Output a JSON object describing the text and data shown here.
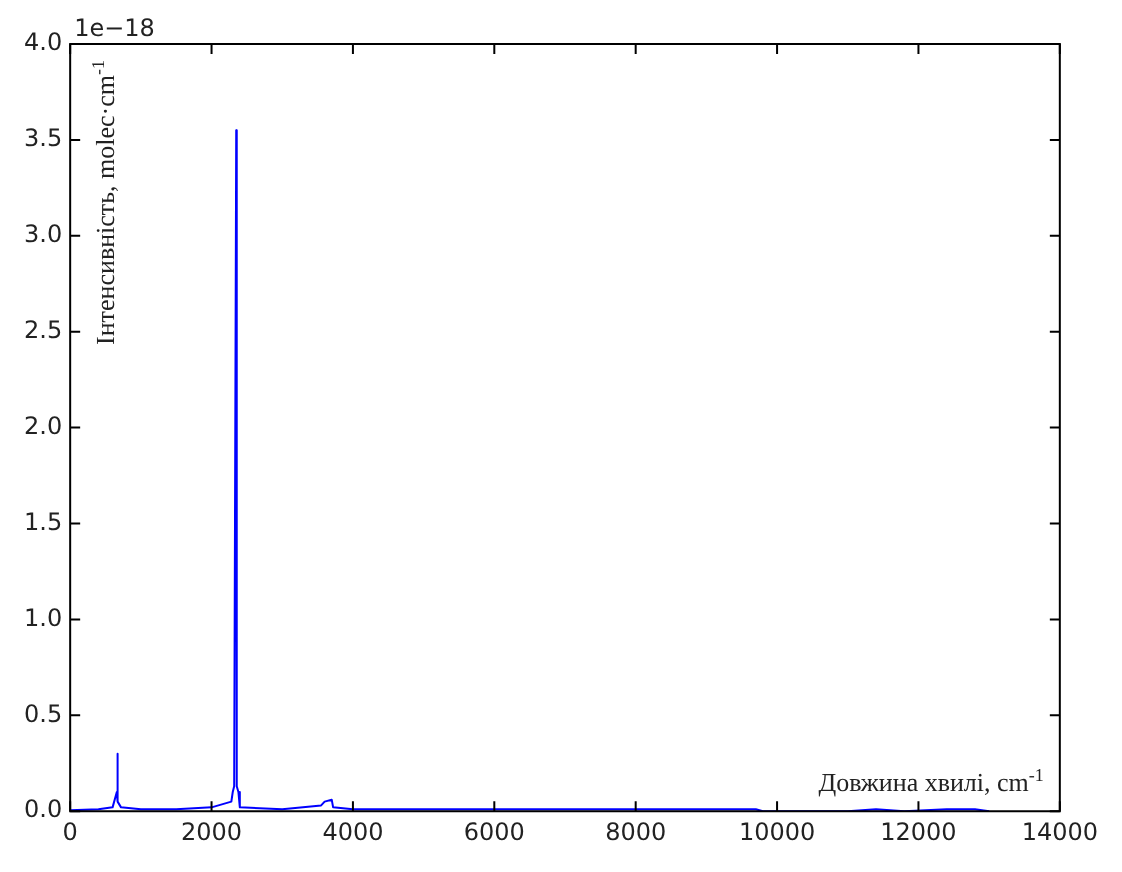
{
  "chart_data": {
    "type": "line",
    "xlabel": "Довжина хвилі, cm$^{-1}$",
    "ylabel": "Інтенсивність, molec·cm$^{-1}$",
    "annotations": [
      "1e−18"
    ],
    "x": [
      0,
      400,
      600,
      660,
      667,
      675,
      720,
      1000,
      1500,
      2000,
      2280,
      2300,
      2320,
      2345,
      2349,
      2353,
      2360,
      2380,
      2400,
      3000,
      3550,
      3600,
      3700,
      3720,
      4000,
      6000,
      8000,
      9700,
      9800,
      11000,
      11400,
      11800,
      12400,
      12800,
      13000
    ],
    "series": [
      {
        "color": "#0000ff",
        "values": [
          0.005,
          0.01,
          0.02,
          0.1,
          0.3,
          0.05,
          0.02,
          0.01,
          0.01,
          0.02,
          0.05,
          0.1,
          0.13,
          0.13,
          3.55,
          0.13,
          0.13,
          0.1,
          0.02,
          0.01,
          0.03,
          0.05,
          0.06,
          0.02,
          0.01,
          0.01,
          0.01,
          0.01,
          0,
          0,
          0.01,
          0,
          0.01,
          0.01,
          0
        ]
      }
    ],
    "xlim": [
      0,
      14000
    ],
    "xticks": [
      0,
      2000,
      4000,
      6000,
      8000,
      10000,
      12000,
      14000
    ],
    "ylim": [
      0,
      4
    ],
    "yticks": [
      {
        "value": 0,
        "label": "0.0"
      },
      {
        "value": 0.5,
        "label": "0.5"
      },
      {
        "value": 1,
        "label": "1.0"
      },
      {
        "value": 1.5,
        "label": "1.5"
      },
      {
        "value": 2,
        "label": "2.0"
      },
      {
        "value": 2.5,
        "label": "2.5"
      },
      {
        "value": 3,
        "label": "3.0"
      },
      {
        "value": 3.5,
        "label": "3.5"
      },
      {
        "value": 4,
        "label": "4.0"
      }
    ],
    "grid": false,
    "legend": false,
    "marker": "none",
    "line_style": "solid"
  }
}
